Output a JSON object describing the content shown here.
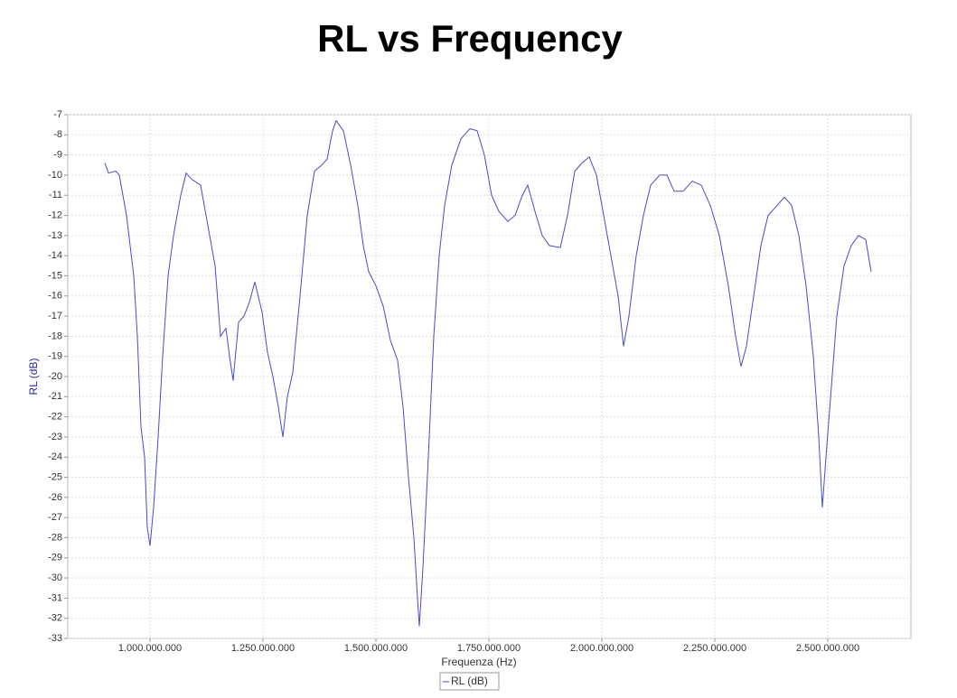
{
  "chart_data": {
    "type": "line",
    "title": "RL vs Frequency",
    "x_label": "Frequenza (Hz)",
    "y_label": "RL (dB)",
    "x": [
      900000000,
      908000000,
      924000000,
      932000000,
      948000000,
      964000000,
      972000000,
      980000000,
      988000000,
      994000000,
      1000000000,
      1008000000,
      1018000000,
      1028000000,
      1040000000,
      1052000000,
      1068000000,
      1080000000,
      1092000000,
      1112000000,
      1128000000,
      1144000000,
      1156000000,
      1168000000,
      1176000000,
      1184000000,
      1196000000,
      1208000000,
      1220000000,
      1232000000,
      1248000000,
      1260000000,
      1272000000,
      1284000000,
      1294000000,
      1304000000,
      1316000000,
      1332000000,
      1348000000,
      1364000000,
      1380000000,
      1392000000,
      1404000000,
      1412000000,
      1428000000,
      1444000000,
      1460000000,
      1472000000,
      1484000000,
      1500000000,
      1516000000,
      1532000000,
      1548000000,
      1560000000,
      1572000000,
      1584000000,
      1592000000,
      1596000000,
      1604000000,
      1616000000,
      1628000000,
      1640000000,
      1652000000,
      1668000000,
      1688000000,
      1708000000,
      1724000000,
      1740000000,
      1756000000,
      1772000000,
      1792000000,
      1808000000,
      1824000000,
      1836000000,
      1852000000,
      1868000000,
      1884000000,
      1908000000,
      1924000000,
      1940000000,
      1956000000,
      1972000000,
      1988000000,
      2004000000,
      2020000000,
      2036000000,
      2048000000,
      2060000000,
      2076000000,
      2092000000,
      2108000000,
      2128000000,
      2144000000,
      2160000000,
      2180000000,
      2200000000,
      2220000000,
      2240000000,
      2260000000,
      2280000000,
      2296000000,
      2308000000,
      2320000000,
      2336000000,
      2352000000,
      2368000000,
      2388000000,
      2404000000,
      2420000000,
      2436000000,
      2452000000,
      2468000000,
      2480000000,
      2488000000,
      2496000000,
      2508000000,
      2520000000,
      2536000000,
      2552000000,
      2568000000,
      2584000000,
      2596000000
    ],
    "series": [
      {
        "name": "RL (dB)",
        "color": "#4a4ac8",
        "values": [
          -9.4,
          -9.9,
          -9.8,
          -10,
          -12,
          -15,
          -18,
          -22.5,
          -24,
          -27.5,
          -28.4,
          -26.5,
          -23,
          -19,
          -15,
          -13,
          -11,
          -9.9,
          -10.2,
          -10.5,
          -12.5,
          -14.5,
          -18,
          -17.6,
          -19,
          -20.2,
          -17.3,
          -17,
          -16.3,
          -15.3,
          -16.8,
          -18.8,
          -20,
          -21.5,
          -23,
          -21,
          -19.8,
          -16,
          -12,
          -9.8,
          -9.5,
          -9.2,
          -7.8,
          -7.3,
          -7.8,
          -9.5,
          -11.5,
          -13.5,
          -14.8,
          -15.5,
          -16.5,
          -18.2,
          -19.2,
          -21.5,
          -25,
          -28,
          -31,
          -32.4,
          -29.5,
          -24,
          -18,
          -14,
          -11.5,
          -9.5,
          -8.2,
          -7.7,
          -7.8,
          -9,
          -11,
          -11.8,
          -12.3,
          -12,
          -11,
          -10.5,
          -11.8,
          -13,
          -13.5,
          -13.6,
          -12,
          -9.8,
          -9.4,
          -9.1,
          -10,
          -12,
          -14,
          -16,
          -18.5,
          -17,
          -14,
          -12,
          -10.5,
          -10,
          -10,
          -10.8,
          -10.8,
          -10.3,
          -10.5,
          -11.5,
          -13,
          -15.5,
          -18,
          -19.5,
          -18.5,
          -16,
          -13.5,
          -12,
          -11.5,
          -11.1,
          -11.5,
          -13,
          -15.5,
          -19,
          -23,
          -26.5,
          -24,
          -20.5,
          -17,
          -14.5,
          -13.5,
          -13,
          -13.2,
          -14.8
        ]
      }
    ],
    "xlim": [
      818000000,
      2684000000
    ],
    "xticks": [
      {
        "value": 1000000000,
        "label": "1.000.000.000"
      },
      {
        "value": 1250000000,
        "label": "1.250.000.000"
      },
      {
        "value": 1500000000,
        "label": "1.500.000.000"
      },
      {
        "value": 1750000000,
        "label": "1.750.000.000"
      },
      {
        "value": 2000000000,
        "label": "2.000.000.000"
      },
      {
        "value": 2250000000,
        "label": "2.250.000.000"
      },
      {
        "value": 2500000000,
        "label": "2.500.000.000"
      }
    ],
    "ylim": [
      -33,
      -7
    ],
    "yticks": [
      -7,
      -8,
      -9,
      -10,
      -11,
      -12,
      -13,
      -14,
      -15,
      -16,
      -17,
      -18,
      -19,
      -20,
      -21,
      -22,
      -23,
      -24,
      -25,
      -26,
      -27,
      -28,
      -29,
      -30,
      -31,
      -32,
      -33
    ],
    "grid": true,
    "legend": "bottom"
  }
}
